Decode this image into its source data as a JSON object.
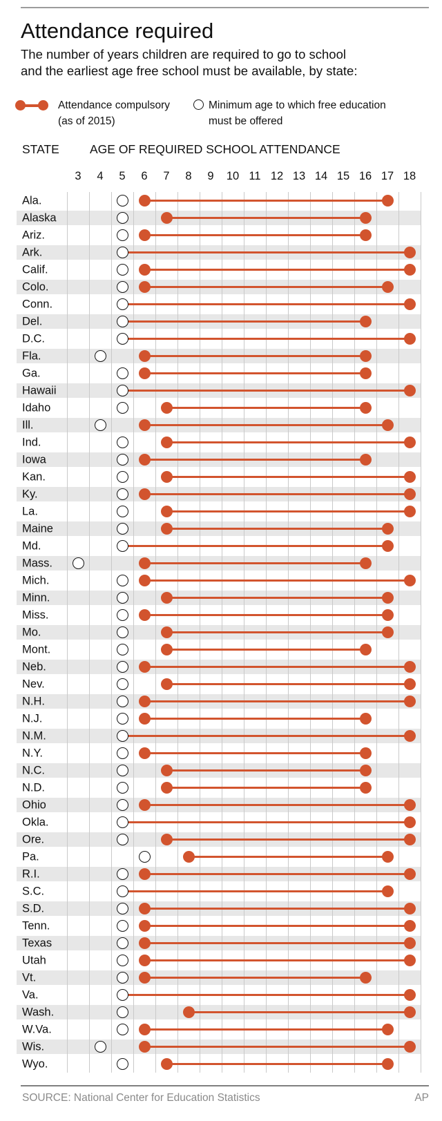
{
  "title": "Attendance required",
  "subtitle_lines": [
    "The number of years children are required to go to school",
    "and the earliest age free school must be available, by state:"
  ],
  "legend": {
    "compulsory_line1": "Attendance compulsory",
    "compulsory_line2": "(as of 2015)",
    "free_line1": "Minimum age to which free education",
    "free_line2": "must be offered"
  },
  "column_headers": {
    "state": "STATE",
    "age": "AGE OF REQUIRED SCHOOL ATTENDANCE"
  },
  "footer": {
    "source": "SOURCE: National Center for Education Statistics",
    "credit": "AP"
  },
  "colors": {
    "accent": "#d2542e",
    "stripe": "#e7e7e7",
    "gridline": "#c9c9c9",
    "circle_stroke": "#141414",
    "muted": "#8a8a8a"
  },
  "chart_data": {
    "type": "dumbbell",
    "title": "Attendance required",
    "xlabel": "AGE OF REQUIRED SCHOOL ATTENDANCE",
    "age_axis": [
      3,
      4,
      5,
      6,
      7,
      8,
      9,
      10,
      11,
      12,
      13,
      14,
      15,
      16,
      17,
      18
    ],
    "xlim": [
      2.5,
      18.5
    ],
    "grid": true,
    "legend_position": "top",
    "series_meaning": {
      "free_min_age": "Minimum age to which free education must be offered (open circle)",
      "compulsory_start": "Start of compulsory attendance age range (filled dot)",
      "compulsory_end": "End of compulsory attendance age range (filled dot)"
    },
    "states": [
      {
        "state": "Ala.",
        "free_min_age": 5,
        "compulsory_start": 6,
        "compulsory_end": 17
      },
      {
        "state": "Alaska",
        "free_min_age": 5,
        "compulsory_start": 7,
        "compulsory_end": 16
      },
      {
        "state": "Ariz.",
        "free_min_age": 5,
        "compulsory_start": 6,
        "compulsory_end": 16
      },
      {
        "state": "Ark.",
        "free_min_age": 5,
        "compulsory_start": 5,
        "compulsory_end": 18
      },
      {
        "state": "Calif.",
        "free_min_age": 5,
        "compulsory_start": 6,
        "compulsory_end": 18
      },
      {
        "state": "Colo.",
        "free_min_age": 5,
        "compulsory_start": 6,
        "compulsory_end": 17
      },
      {
        "state": "Conn.",
        "free_min_age": 5,
        "compulsory_start": 5,
        "compulsory_end": 18
      },
      {
        "state": "Del.",
        "free_min_age": 5,
        "compulsory_start": 5,
        "compulsory_end": 16
      },
      {
        "state": "D.C.",
        "free_min_age": 5,
        "compulsory_start": 5,
        "compulsory_end": 18
      },
      {
        "state": "Fla.",
        "free_min_age": 4,
        "compulsory_start": 6,
        "compulsory_end": 16
      },
      {
        "state": "Ga.",
        "free_min_age": 5,
        "compulsory_start": 6,
        "compulsory_end": 16
      },
      {
        "state": "Hawaii",
        "free_min_age": 5,
        "compulsory_start": 5,
        "compulsory_end": 18
      },
      {
        "state": "Idaho",
        "free_min_age": 5,
        "compulsory_start": 7,
        "compulsory_end": 16
      },
      {
        "state": "Ill.",
        "free_min_age": 4,
        "compulsory_start": 6,
        "compulsory_end": 17
      },
      {
        "state": "Ind.",
        "free_min_age": 5,
        "compulsory_start": 7,
        "compulsory_end": 18
      },
      {
        "state": "Iowa",
        "free_min_age": 5,
        "compulsory_start": 6,
        "compulsory_end": 16
      },
      {
        "state": "Kan.",
        "free_min_age": 5,
        "compulsory_start": 7,
        "compulsory_end": 18
      },
      {
        "state": "Ky.",
        "free_min_age": 5,
        "compulsory_start": 6,
        "compulsory_end": 18
      },
      {
        "state": "La.",
        "free_min_age": 5,
        "compulsory_start": 7,
        "compulsory_end": 18
      },
      {
        "state": "Maine",
        "free_min_age": 5,
        "compulsory_start": 7,
        "compulsory_end": 17
      },
      {
        "state": "Md.",
        "free_min_age": 5,
        "compulsory_start": 5,
        "compulsory_end": 17
      },
      {
        "state": "Mass.",
        "free_min_age": 3,
        "compulsory_start": 6,
        "compulsory_end": 16
      },
      {
        "state": "Mich.",
        "free_min_age": 5,
        "compulsory_start": 6,
        "compulsory_end": 18
      },
      {
        "state": "Minn.",
        "free_min_age": 5,
        "compulsory_start": 7,
        "compulsory_end": 17
      },
      {
        "state": "Miss.",
        "free_min_age": 5,
        "compulsory_start": 6,
        "compulsory_end": 17
      },
      {
        "state": "Mo.",
        "free_min_age": 5,
        "compulsory_start": 7,
        "compulsory_end": 17
      },
      {
        "state": "Mont.",
        "free_min_age": 5,
        "compulsory_start": 7,
        "compulsory_end": 16
      },
      {
        "state": "Neb.",
        "free_min_age": 5,
        "compulsory_start": 6,
        "compulsory_end": 18
      },
      {
        "state": "Nev.",
        "free_min_age": 5,
        "compulsory_start": 7,
        "compulsory_end": 18
      },
      {
        "state": "N.H.",
        "free_min_age": 5,
        "compulsory_start": 6,
        "compulsory_end": 18
      },
      {
        "state": "N.J.",
        "free_min_age": 5,
        "compulsory_start": 6,
        "compulsory_end": 16
      },
      {
        "state": "N.M.",
        "free_min_age": 5,
        "compulsory_start": 5,
        "compulsory_end": 18
      },
      {
        "state": "N.Y.",
        "free_min_age": 5,
        "compulsory_start": 6,
        "compulsory_end": 16
      },
      {
        "state": "N.C.",
        "free_min_age": 5,
        "compulsory_start": 7,
        "compulsory_end": 16
      },
      {
        "state": "N.D.",
        "free_min_age": 5,
        "compulsory_start": 7,
        "compulsory_end": 16
      },
      {
        "state": "Ohio",
        "free_min_age": 5,
        "compulsory_start": 6,
        "compulsory_end": 18
      },
      {
        "state": "Okla.",
        "free_min_age": 5,
        "compulsory_start": 5,
        "compulsory_end": 18
      },
      {
        "state": "Ore.",
        "free_min_age": 5,
        "compulsory_start": 7,
        "compulsory_end": 18
      },
      {
        "state": "Pa.",
        "free_min_age": 6,
        "compulsory_start": 8,
        "compulsory_end": 17
      },
      {
        "state": "R.I.",
        "free_min_age": 5,
        "compulsory_start": 6,
        "compulsory_end": 18
      },
      {
        "state": "S.C.",
        "free_min_age": 5,
        "compulsory_start": 5,
        "compulsory_end": 17
      },
      {
        "state": "S.D.",
        "free_min_age": 5,
        "compulsory_start": 6,
        "compulsory_end": 18
      },
      {
        "state": "Tenn.",
        "free_min_age": 5,
        "compulsory_start": 6,
        "compulsory_end": 18
      },
      {
        "state": "Texas",
        "free_min_age": 5,
        "compulsory_start": 6,
        "compulsory_end": 18
      },
      {
        "state": "Utah",
        "free_min_age": 5,
        "compulsory_start": 6,
        "compulsory_end": 18
      },
      {
        "state": "Vt.",
        "free_min_age": 5,
        "compulsory_start": 6,
        "compulsory_end": 16
      },
      {
        "state": "Va.",
        "free_min_age": 5,
        "compulsory_start": 5,
        "compulsory_end": 18
      },
      {
        "state": "Wash.",
        "free_min_age": 5,
        "compulsory_start": 8,
        "compulsory_end": 18
      },
      {
        "state": "W.Va.",
        "free_min_age": 5,
        "compulsory_start": 6,
        "compulsory_end": 17
      },
      {
        "state": "Wis.",
        "free_min_age": 4,
        "compulsory_start": 6,
        "compulsory_end": 18
      },
      {
        "state": "Wyo.",
        "free_min_age": 5,
        "compulsory_start": 7,
        "compulsory_end": 17
      }
    ]
  }
}
